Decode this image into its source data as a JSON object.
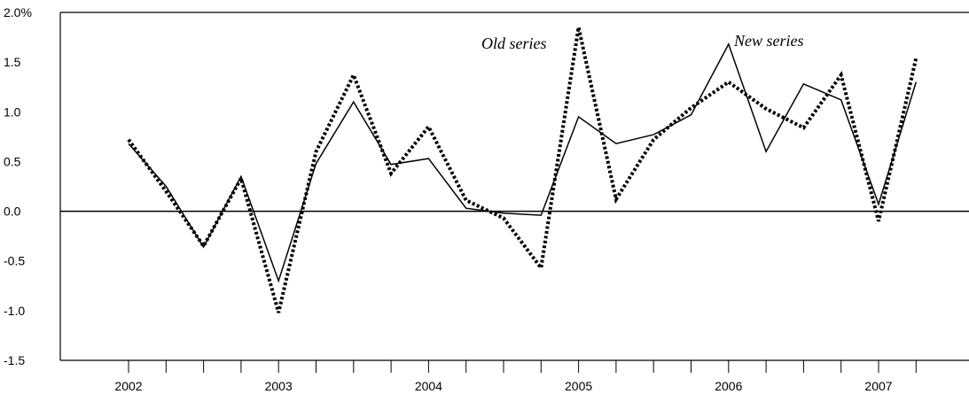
{
  "chart_data": {
    "type": "line",
    "title": "",
    "xlabel": "",
    "ylabel": "",
    "ylim": [
      -1.5,
      2.0
    ],
    "y_ticks": [
      "2.0%",
      "1.5",
      "1.0",
      "0.5",
      "0.0",
      "-0.5",
      "-1.0",
      "-1.5"
    ],
    "y_tick_values": [
      2.0,
      1.5,
      1.0,
      0.5,
      0.0,
      -0.5,
      -1.0,
      -1.5
    ],
    "year_labels": [
      "2002",
      "2003",
      "2004",
      "2005",
      "2006",
      "2007"
    ],
    "quarters": [
      "2002 Q1",
      "2002 Q2",
      "2002 Q3",
      "2002 Q4",
      "2003 Q1",
      "2003 Q2",
      "2003 Q3",
      "2003 Q4",
      "2004 Q1",
      "2004 Q2",
      "2004 Q3",
      "2004 Q4",
      "2005 Q1",
      "2005 Q2",
      "2005 Q3",
      "2005 Q4",
      "2006 Q1",
      "2006 Q2",
      "2006 Q3",
      "2006 Q4",
      "2007 Q1",
      "2007 Q2"
    ],
    "grid": false,
    "series": [
      {
        "name": "New series",
        "style": "solid",
        "color": "#000000",
        "values": [
          0.68,
          0.25,
          -0.36,
          0.35,
          -0.7,
          0.48,
          1.1,
          0.47,
          0.53,
          0.03,
          -0.02,
          -0.04,
          0.95,
          0.68,
          0.77,
          0.97,
          1.68,
          0.6,
          1.28,
          1.12,
          0.07,
          1.3
        ]
      },
      {
        "name": "Old series",
        "style": "dotted",
        "color": "#000000",
        "values": [
          0.72,
          0.2,
          -0.35,
          0.33,
          -1.02,
          0.6,
          1.37,
          0.38,
          0.85,
          0.11,
          -0.07,
          -0.57,
          1.85,
          0.12,
          0.72,
          1.04,
          1.3,
          1.03,
          0.84,
          1.37,
          -0.1,
          1.54
        ]
      }
    ],
    "annotations": [
      {
        "text": "Old series",
        "series": "Old series"
      },
      {
        "text": "New series",
        "series": "New series"
      }
    ]
  }
}
